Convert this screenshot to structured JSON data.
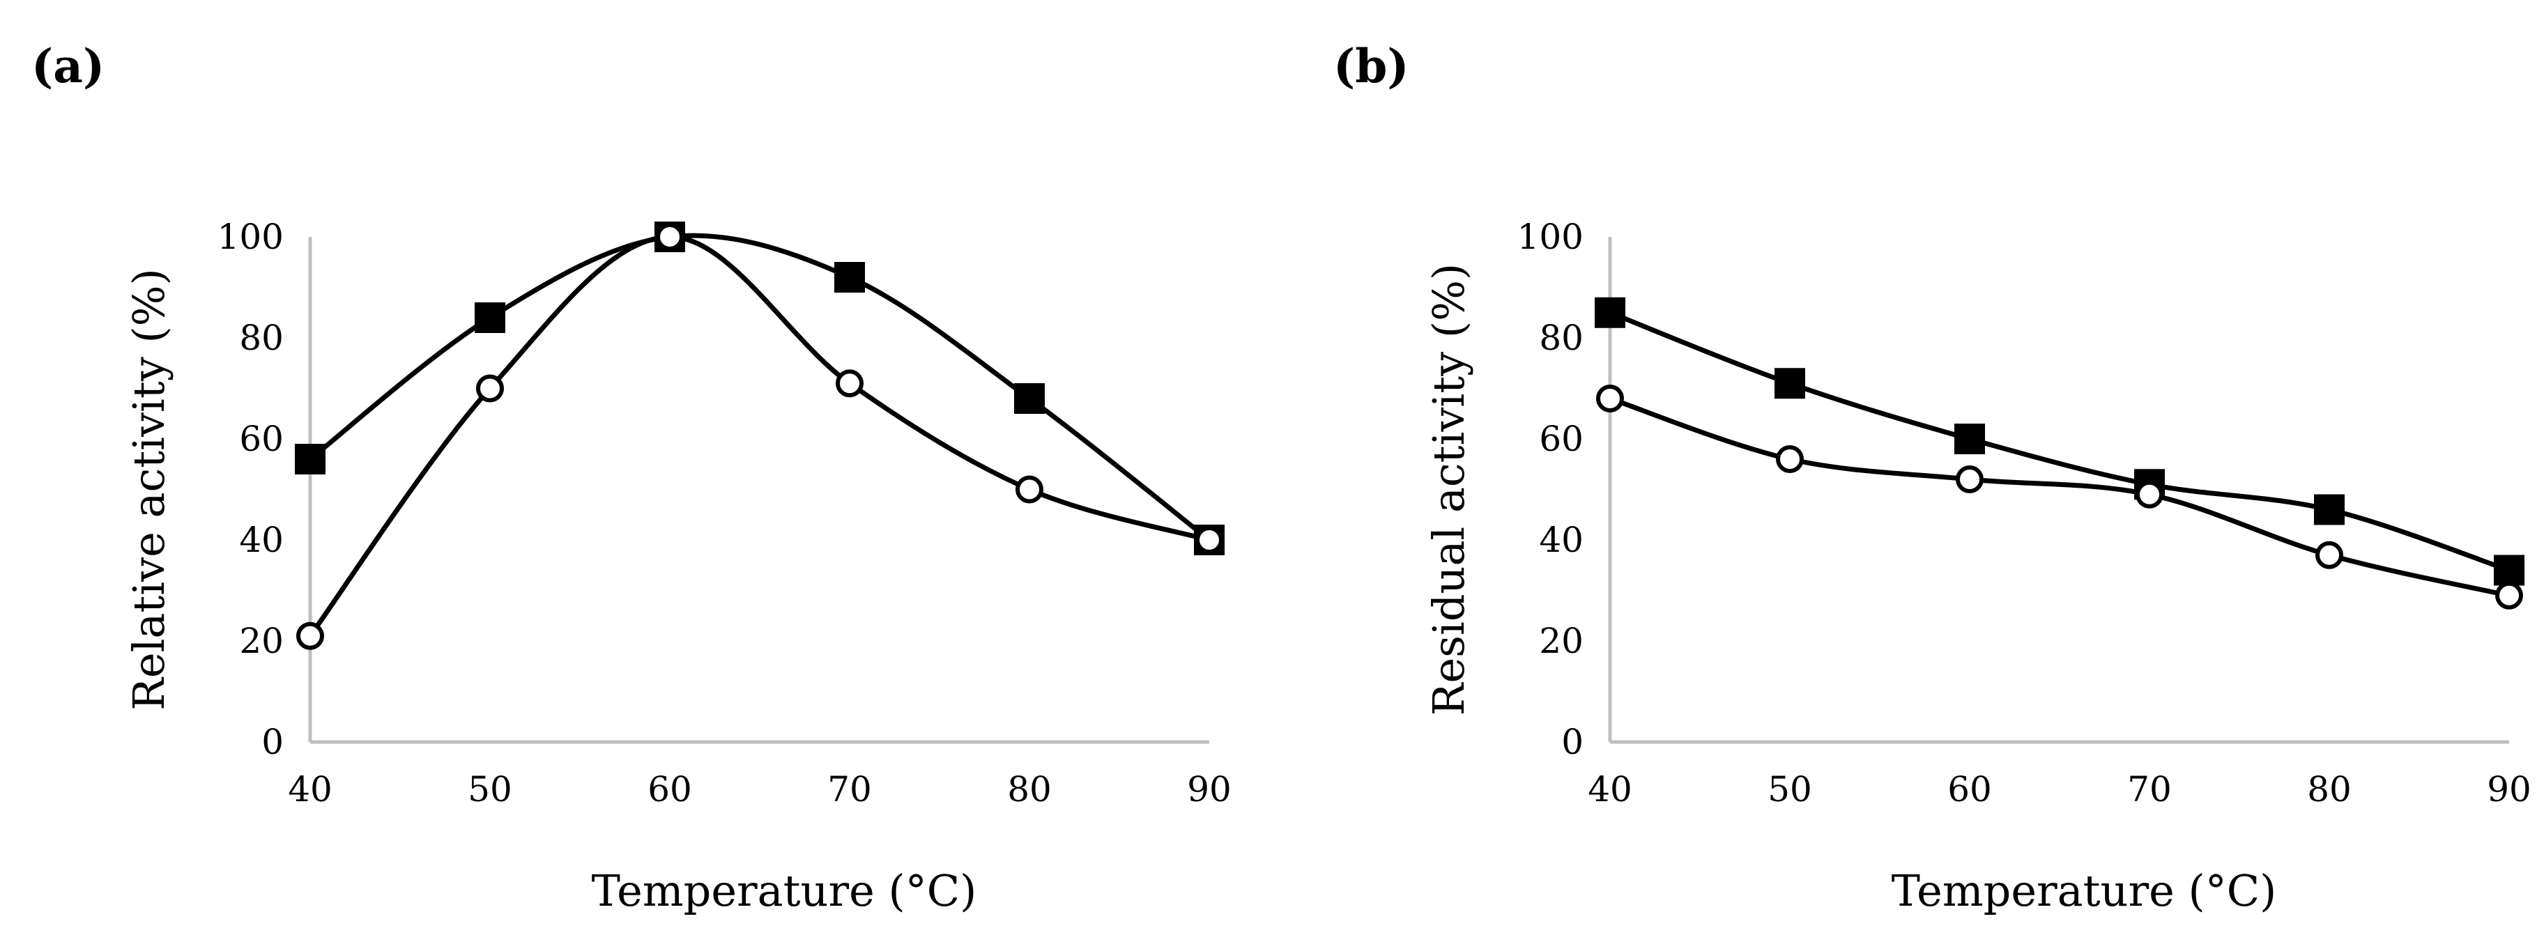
{
  "panels": [
    {
      "label": "(a)"
    },
    {
      "label": "(b)"
    }
  ],
  "chart_data": [
    {
      "type": "line",
      "panel": "(a)",
      "title": "",
      "xlabel": "Temperature (°C)",
      "ylabel": "Relative activity (%)",
      "x": [
        40,
        50,
        60,
        70,
        80,
        90
      ],
      "xlim": [
        40,
        90
      ],
      "ylim": [
        0,
        100
      ],
      "xticks": [
        "40",
        "50",
        "60",
        "70",
        "80",
        "90"
      ],
      "yticks": [
        "0",
        "20",
        "40",
        "60",
        "80",
        "100"
      ],
      "grid": false,
      "legend": "none",
      "series": [
        {
          "name": "filled-square series",
          "marker": "square-filled",
          "color": "#000000",
          "values": [
            56,
            84,
            100,
            92,
            68,
            40
          ]
        },
        {
          "name": "open-circle series",
          "marker": "circle-open",
          "color": "#000000",
          "values": [
            21,
            70,
            100,
            71,
            50,
            40
          ]
        }
      ]
    },
    {
      "type": "line",
      "panel": "(b)",
      "title": "",
      "xlabel": "Temperature (°C)",
      "ylabel": "Residual activity (%)",
      "x": [
        40,
        50,
        60,
        70,
        80,
        90
      ],
      "xlim": [
        40,
        90
      ],
      "ylim": [
        0,
        100
      ],
      "xticks": [
        "40",
        "50",
        "60",
        "70",
        "80",
        "90"
      ],
      "yticks": [
        "0",
        "20",
        "40",
        "60",
        "80",
        "100"
      ],
      "grid": false,
      "legend": "none",
      "series": [
        {
          "name": "filled-square series",
          "marker": "square-filled",
          "color": "#000000",
          "values": [
            85,
            71,
            60,
            51,
            46,
            34
          ]
        },
        {
          "name": "open-circle series",
          "marker": "circle-open",
          "color": "#000000",
          "values": [
            68,
            56,
            52,
            49,
            37,
            29
          ]
        }
      ]
    }
  ]
}
